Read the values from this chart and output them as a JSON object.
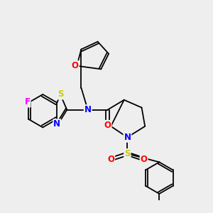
{
  "background_color": "#eeeeee",
  "fig_size": [
    3.0,
    3.0
  ],
  "dpi": 100,
  "atom_colors": {
    "F": "#ff00ff",
    "S_thz": "#cccc00",
    "S_sul": "#cccc00",
    "N": "#0000ff",
    "O": "#ff0000",
    "C": "#000000"
  },
  "bond_color": "#000000",
  "bond_lw": 1.3,
  "font_size": 8.5
}
